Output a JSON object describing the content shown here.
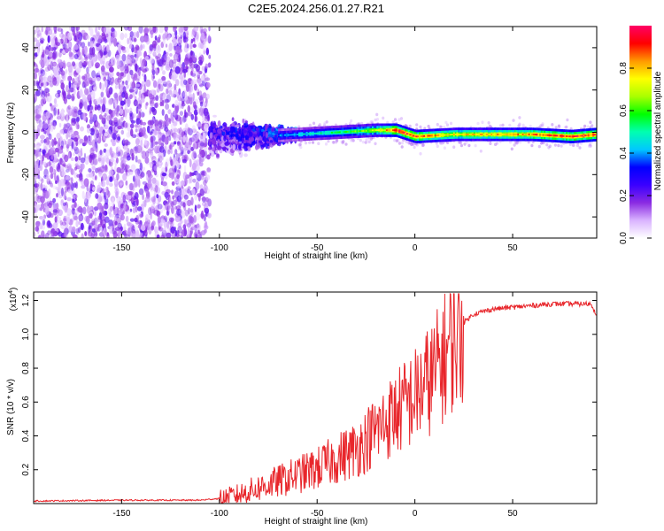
{
  "title": "C2E5.2024.256.01.27.R21",
  "chart_data": [
    {
      "type": "heatmap",
      "xlabel": "Height of straight line (km)",
      "ylabel": "Frequency (Hz)",
      "xlim": [
        -195,
        93
      ],
      "ylim": [
        -50,
        50
      ],
      "x_ticks": [
        -150,
        -100,
        -50,
        0,
        50
      ],
      "y_ticks": [
        -40,
        -20,
        0,
        20,
        40
      ],
      "colorbar": {
        "label": "Normalized spectral amplitude",
        "range": [
          0,
          1
        ],
        "ticks": [
          "0.0",
          "0.2",
          "0.4",
          "0.6",
          "0.8"
        ],
        "colors": [
          "#ffffff",
          "#d9b3ff",
          "#8a2be2",
          "#3a00ff",
          "#0000ff",
          "#00c8ff",
          "#00ffb0",
          "#00ff00",
          "#aaff00",
          "#ffff00",
          "#ff9900",
          "#ff0000",
          "#ff0066"
        ]
      },
      "regions": [
        {
          "x": [
            -195,
            -105
          ],
          "description": "scattered noise, amplitude about 0.1-0.2 over all frequencies"
        },
        {
          "x": [
            -105,
            -60
          ],
          "description": "broad blob around 0 Hz, spread about +/-15 Hz, amplitude 0.2-0.5"
        },
        {
          "x": [
            -60,
            93
          ],
          "description": "narrow line near 0 Hz, amplitude rising to about 1.0"
        }
      ],
      "ridge": {
        "x": [
          -105,
          -80,
          -60,
          -40,
          -20,
          -10,
          0,
          20,
          40,
          60,
          80,
          93
        ],
        "freq": [
          -3,
          -2,
          -1,
          0,
          1,
          1,
          -2,
          -1,
          -1,
          -1,
          -2,
          -1
        ],
        "amplitude": [
          0.3,
          0.35,
          0.45,
          0.55,
          0.7,
          0.95,
          0.9,
          0.75,
          0.8,
          0.85,
          0.95,
          0.9
        ]
      }
    },
    {
      "type": "line",
      "xlabel": "Height of straight line (km)",
      "ylabel": "SNR (10 * v/v)",
      "yscale_label": "(x10",
      "yscale_exp": "4",
      "xlim": [
        -195,
        93
      ],
      "ylim": [
        0,
        1.25
      ],
      "x_ticks": [
        -150,
        -100,
        -50,
        0,
        50
      ],
      "y_ticks": [
        "0.2",
        "0.4",
        "0.6",
        "0.8",
        "1.0",
        "1.2"
      ],
      "series": [
        {
          "color": "#e8262b",
          "x": [
            -195,
            -150,
            -110,
            -100,
            -90,
            -80,
            -70,
            -60,
            -50,
            -40,
            -30,
            -20,
            -10,
            0,
            10,
            20,
            30,
            40,
            50,
            60,
            70,
            80,
            90,
            93
          ],
          "y": [
            0.015,
            0.02,
            0.02,
            0.03,
            0.06,
            0.1,
            0.14,
            0.18,
            0.22,
            0.28,
            0.34,
            0.45,
            0.56,
            0.66,
            0.8,
            1.02,
            1.12,
            1.15,
            1.16,
            1.17,
            1.18,
            1.18,
            1.18,
            1.12
          ]
        }
      ]
    }
  ]
}
